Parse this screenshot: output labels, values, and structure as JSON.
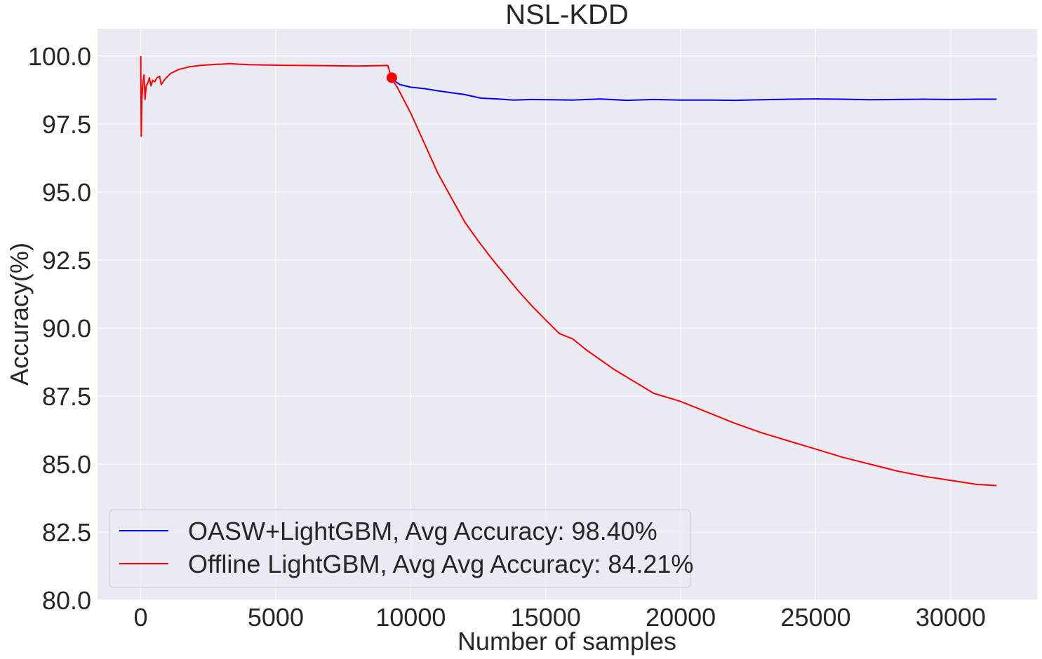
{
  "chart_data": {
    "type": "line",
    "title": "NSL-KDD",
    "xlabel": "Number of samples",
    "ylabel": "Accuracy(%)",
    "xlim": [
      -1600,
      33200
    ],
    "ylim": [
      80,
      101
    ],
    "xticks": [
      0,
      5000,
      10000,
      15000,
      20000,
      25000,
      30000
    ],
    "xtick_labels": [
      "0",
      "5000",
      "10000",
      "15000",
      "20000",
      "25000",
      "30000"
    ],
    "yticks": [
      80.0,
      82.5,
      85.0,
      87.5,
      90.0,
      92.5,
      95.0,
      97.5,
      100.0
    ],
    "ytick_labels": [
      "80.0",
      "82.5",
      "85.0",
      "87.5",
      "90.0",
      "92.5",
      "95.0",
      "97.5",
      "100.0"
    ],
    "grid": true,
    "legend_position": "lower-left",
    "series": [
      {
        "name": "OASW+LightGBM, Avg Accuracy: 98.40%",
        "color": "#0000ff",
        "x": [
          9300,
          9600,
          10000,
          10500,
          11000,
          11500,
          12000,
          12600,
          13200,
          13800,
          14500,
          15200,
          16000,
          17000,
          18000,
          19000,
          20000,
          21000,
          22000,
          23000,
          24000,
          25000,
          26000,
          27000,
          28000,
          29000,
          30000,
          31000,
          31700
        ],
        "y": [
          99.15,
          98.95,
          98.85,
          98.8,
          98.72,
          98.65,
          98.58,
          98.45,
          98.42,
          98.38,
          98.4,
          98.39,
          98.38,
          98.42,
          98.37,
          98.4,
          98.38,
          98.38,
          98.37,
          98.39,
          98.41,
          98.42,
          98.41,
          98.39,
          98.4,
          98.41,
          98.4,
          98.41,
          98.41
        ]
      },
      {
        "name": "Offline LightGBM, Avg Avg Accuracy: 84.21%",
        "color": "#ff0000",
        "x": [
          0,
          20,
          40,
          80,
          120,
          160,
          200,
          260,
          320,
          380,
          440,
          520,
          600,
          700,
          760,
          900,
          1100,
          1400,
          1800,
          2200,
          2600,
          3000,
          3300,
          3600,
          4000,
          5000,
          6000,
          7000,
          8000,
          9150,
          9300,
          9500,
          10000,
          10500,
          11000,
          11500,
          12000,
          12500,
          13000,
          13500,
          14000,
          14500,
          15000,
          15500,
          16000,
          16500,
          17000,
          17500,
          18000,
          19000,
          20000,
          21000,
          22000,
          23000,
          24000,
          25000,
          26000,
          27000,
          28000,
          29000,
          30000,
          31000,
          31700
        ],
        "y": [
          100.0,
          97.05,
          98.4,
          99.0,
          99.3,
          98.4,
          98.9,
          99.0,
          99.2,
          98.9,
          99.1,
          99.05,
          99.2,
          99.25,
          98.95,
          99.15,
          99.35,
          99.5,
          99.6,
          99.65,
          99.68,
          99.7,
          99.72,
          99.7,
          99.68,
          99.66,
          99.65,
          99.64,
          99.63,
          99.65,
          99.15,
          98.85,
          97.9,
          96.8,
          95.7,
          94.8,
          93.9,
          93.2,
          92.55,
          91.95,
          91.35,
          90.8,
          90.3,
          89.8,
          89.6,
          89.2,
          88.85,
          88.5,
          88.2,
          87.6,
          87.3,
          86.9,
          86.5,
          86.15,
          85.85,
          85.55,
          85.25,
          85.0,
          84.75,
          84.55,
          84.4,
          84.25,
          84.21
        ]
      }
    ],
    "markers": [
      {
        "name": "drift point",
        "x": 9300,
        "y": 99.2,
        "color": "#ff0000"
      }
    ]
  }
}
